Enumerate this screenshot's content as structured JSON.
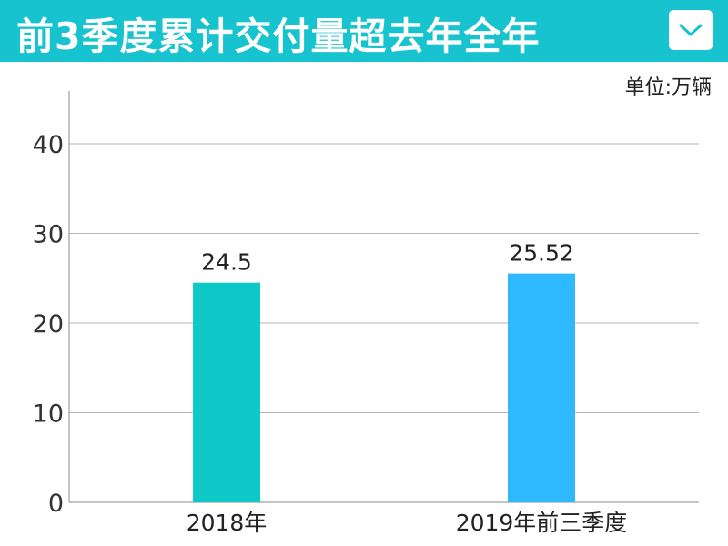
{
  "header": {
    "title": "前3季度累计交付量超去年全年",
    "bg_color": "#17c3cf",
    "dropdown_icon": "chevron-down-icon"
  },
  "unit_label": "单位:万辆",
  "chart_data": {
    "type": "bar",
    "categories": [
      "2018年",
      "2019年前三季度"
    ],
    "values": [
      24.5,
      25.52
    ],
    "data_labels": [
      "24.5",
      "25.52"
    ],
    "colors": [
      "#0ec9c7",
      "#2fb9ff"
    ],
    "title": "前3季度累计交付量超去年全年",
    "unit": "单位:万辆",
    "ylim": [
      0,
      45
    ],
    "yticks": [
      0,
      10,
      20,
      30,
      40
    ],
    "grid": true,
    "legend": "none"
  }
}
